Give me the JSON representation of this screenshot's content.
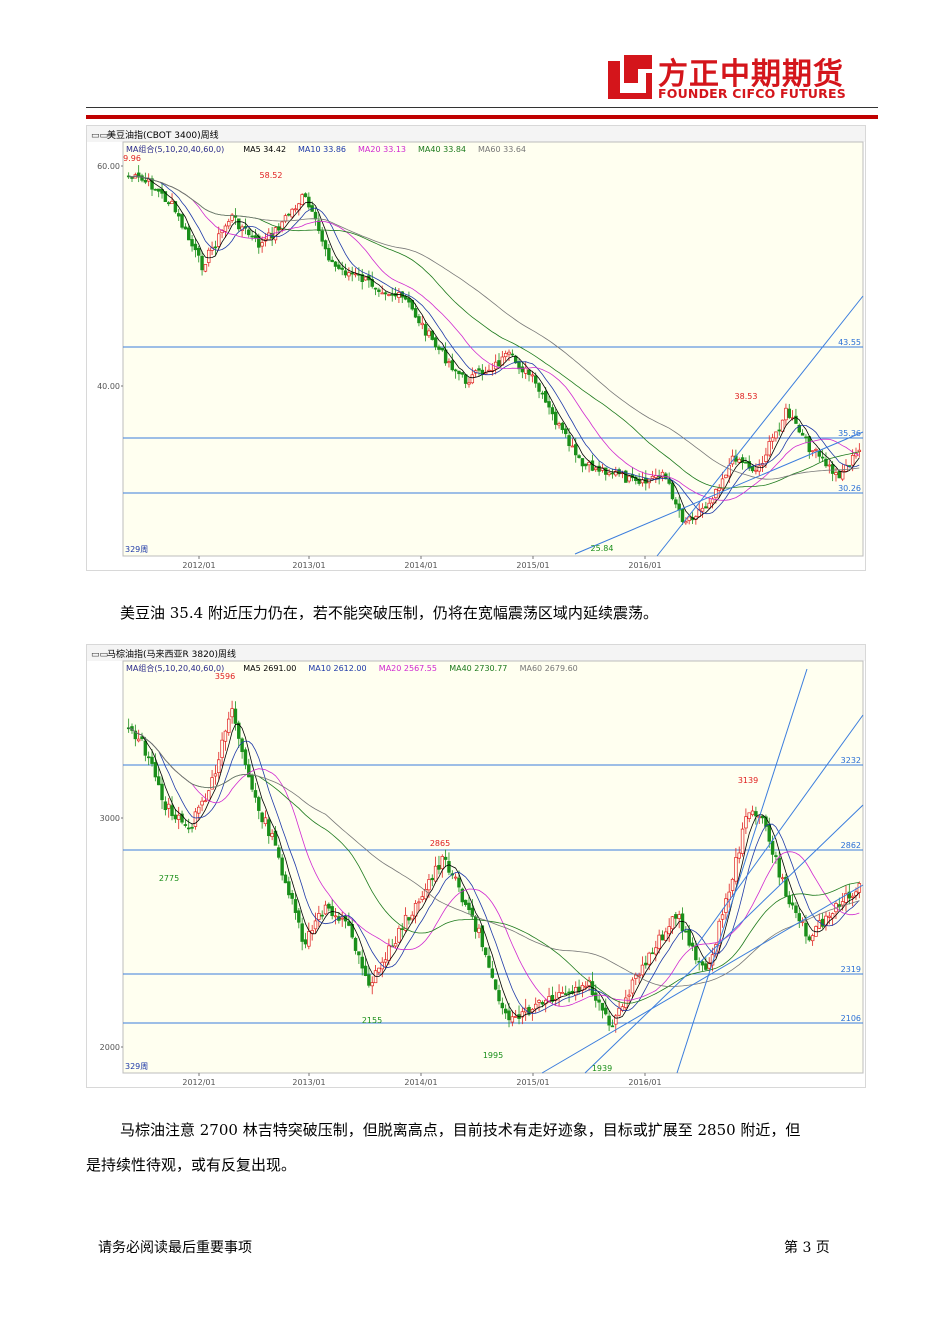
{
  "header": {
    "logo_cn": "方正中期期货",
    "logo_en": "FOUNDER CIFCO FUTURES",
    "brand_color": "#d4151b"
  },
  "charts": [
    {
      "window_title": "美豆油指(CBOT 3400)周线",
      "ma_legend": [
        {
          "text": "MA组合(5,10,20,40,60,0)",
          "color": "#2a2a8a"
        },
        {
          "text": "MA5 34.42",
          "color": "#000000"
        },
        {
          "text": "MA10 33.86",
          "color": "#1f3aa8"
        },
        {
          "text": "MA20 33.13",
          "color": "#d02ad0"
        },
        {
          "text": "MA40 33.84",
          "color": "#1d7a1d"
        },
        {
          "text": "MA60 33.64",
          "color": "#777777"
        }
      ],
      "period_label": "329周",
      "x_ticks": [
        "2012/01",
        "2013/01",
        "2014/01",
        "2015/01",
        "2016/01"
      ],
      "y_ticks": [
        "60.00",
        "40.00"
      ],
      "h_levels": [
        "43.55",
        "35.36",
        "30.26"
      ],
      "annotations": {
        "top_left": "9.96",
        "peak": "58.52",
        "low": "25.84",
        "recent_high": "38.53"
      }
    },
    {
      "window_title": "马棕油指(马来西亚R 3820)周线",
      "ma_legend": [
        {
          "text": "MA组合(5,10,20,40,60,0)",
          "color": "#2a2a8a"
        },
        {
          "text": "MA5 2691.00",
          "color": "#000000"
        },
        {
          "text": "MA10 2612.00",
          "color": "#1f3aa8"
        },
        {
          "text": "MA20 2567.55",
          "color": "#d02ad0"
        },
        {
          "text": "MA40 2730.77",
          "color": "#1d7a1d"
        },
        {
          "text": "MA60 2679.60",
          "color": "#777777"
        }
      ],
      "period_label": "329周",
      "x_ticks": [
        "2012/01",
        "2013/01",
        "2014/01",
        "2015/01",
        "2016/01"
      ],
      "y_ticks": [
        "3000",
        "2000"
      ],
      "h_levels": [
        "3232",
        "2862",
        "2319",
        "2106"
      ],
      "annotations": {
        "peak": "3596",
        "low1": "2775",
        "low2": "2155",
        "mid_high": "2865",
        "low3": "1995",
        "low4": "1939",
        "recent_high": "3139"
      }
    }
  ],
  "paragraphs": {
    "p1": "美豆油 35.4 附近压力仍在，若不能突破压制，仍将在宽幅震荡区域内延续震荡。",
    "p2_line1": "马棕油注意 2700 林吉特突破压制，但脱离高点，目前技术有走好迹象，目标或扩展至 2850 附近，但",
    "p2_line2": "是持续性待观，或有反复出现。"
  },
  "footer": {
    "left": "请务必阅读最后重要事项",
    "right": "第 3 页"
  }
}
